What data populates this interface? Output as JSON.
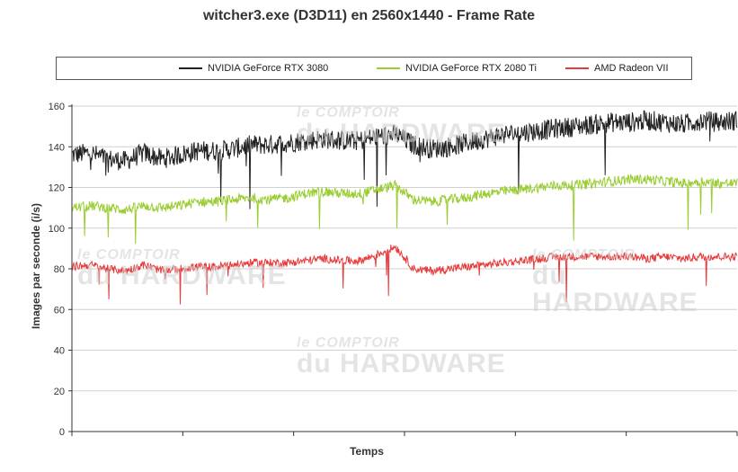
{
  "page": {
    "title": "witcher3.exe (D3D11) en 2560x1440 - Frame Rate"
  },
  "watermark": {
    "line1": "le COMPTOIR",
    "line2": "du HARDWARE"
  },
  "chart_data": {
    "type": "line",
    "title": "witcher3.exe (D3D11) en 2560x1440 - Frame Rate",
    "xlabel": "Temps",
    "ylabel": "Images par seconde (i/s)",
    "ylim": [
      0,
      160
    ],
    "yticks": [
      0,
      20,
      40,
      60,
      80,
      100,
      120,
      140,
      160
    ],
    "grid": "horizontal",
    "legend_position": "top",
    "series": [
      {
        "name": "NVIDIA GeForce RTX 3080",
        "color": "#222222",
        "mean_anchors": [
          136,
          137,
          134,
          133,
          137,
          134,
          136,
          138,
          138,
          139,
          141,
          141,
          142,
          143,
          144,
          143,
          143,
          145,
          146,
          141,
          139,
          140,
          142,
          144,
          146,
          147,
          148,
          149,
          150,
          151,
          152,
          152,
          153,
          152,
          151,
          153,
          152,
          153
        ],
        "noise": 5,
        "min_observed": 108,
        "max_observed": 160
      },
      {
        "name": "NVIDIA GeForce RTX 2080 Ti",
        "color": "#9ACD32",
        "mean_anchors": [
          110,
          111,
          110,
          109,
          111,
          110,
          111,
          113,
          113,
          114,
          115,
          114,
          115,
          117,
          118,
          117,
          117,
          119,
          121,
          114,
          113,
          114,
          115,
          117,
          118,
          119,
          120,
          121,
          121,
          122,
          123,
          124,
          124,
          123,
          122,
          123,
          122,
          122
        ],
        "noise": 2.5,
        "min_observed": 90,
        "max_observed": 127
      },
      {
        "name": "AMD Radeon VII",
        "color": "#E83A3A",
        "mean_anchors": [
          81,
          82,
          80,
          79,
          82,
          79,
          80,
          81,
          81,
          82,
          83,
          83,
          83,
          84,
          85,
          84,
          84,
          87,
          91,
          80,
          79,
          80,
          81,
          82,
          83,
          84,
          85,
          86,
          86,
          86,
          86,
          86,
          85,
          86,
          85,
          86,
          86,
          86
        ],
        "noise": 2,
        "min_observed": 62,
        "max_observed": 93
      }
    ]
  }
}
